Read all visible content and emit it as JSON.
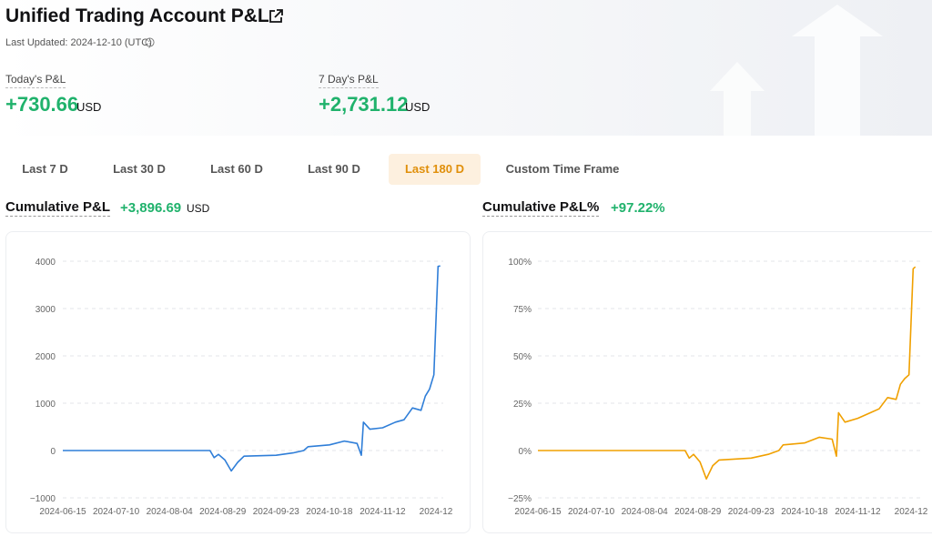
{
  "header": {
    "title": "Unified Trading Account P&L",
    "last_updated": "Last Updated: 2024-12-10 (UTC)"
  },
  "stats": {
    "today": {
      "label": "Today's P&L",
      "value": "+730.66",
      "unit": "USD"
    },
    "week": {
      "label": "7 Day's P&L",
      "value": "+2,731.12",
      "unit": "USD"
    }
  },
  "tabs": [
    {
      "label": "Last 7 D"
    },
    {
      "label": "Last 30 D"
    },
    {
      "label": "Last 60 D"
    },
    {
      "label": "Last 90 D"
    },
    {
      "label": "Last 180 D",
      "active": true
    },
    {
      "label": "Custom Time Frame"
    }
  ],
  "cumulative": {
    "title": "Cumulative P&L",
    "value": "+3,896.69",
    "unit": "USD"
  },
  "cumulative_pct": {
    "title": "Cumulative P&L%",
    "value": "+97.22%"
  },
  "colors": {
    "green": "#20b26c",
    "blue": "#2f7ed8",
    "orange": "#f0a000",
    "accent_bg": "#fdf0df"
  },
  "icons": {
    "external": "external-link-icon",
    "help": "question-circle-icon"
  },
  "chart_data": [
    {
      "type": "line",
      "title": "Cumulative P&L",
      "x_ticks": [
        "2024-06-15",
        "2024-07-10",
        "2024-08-04",
        "2024-08-29",
        "2024-09-23",
        "2024-10-18",
        "2024-11-12",
        "2024-12"
      ],
      "y_ticks": [
        "4000",
        "3000",
        "2000",
        "1000",
        "0",
        "−1000"
      ],
      "ylim": [
        -1000,
        4000
      ],
      "grid": true,
      "series": [
        {
          "points": [
            [
              "2024-06-15",
              0
            ],
            [
              "2024-07-10",
              0
            ],
            [
              "2024-08-04",
              0
            ],
            [
              "2024-08-23",
              0
            ],
            [
              "2024-08-25",
              -150
            ],
            [
              "2024-08-27",
              -80
            ],
            [
              "2024-08-30",
              -200
            ],
            [
              "2024-09-02",
              -430
            ],
            [
              "2024-09-05",
              -250
            ],
            [
              "2024-09-08",
              -120
            ],
            [
              "2024-09-23",
              -100
            ],
            [
              "2024-10-01",
              -50
            ],
            [
              "2024-10-06",
              0
            ],
            [
              "2024-10-08",
              80
            ],
            [
              "2024-10-18",
              120
            ],
            [
              "2024-10-25",
              200
            ],
            [
              "2024-10-31",
              150
            ],
            [
              "2024-11-02",
              -100
            ],
            [
              "2024-11-03",
              600
            ],
            [
              "2024-11-06",
              450
            ],
            [
              "2024-11-12",
              480
            ],
            [
              "2024-11-18",
              600
            ],
            [
              "2024-11-22",
              650
            ],
            [
              "2024-11-26",
              900
            ],
            [
              "2024-11-30",
              850
            ],
            [
              "2024-12-02",
              1150
            ],
            [
              "2024-12-04",
              1300
            ],
            [
              "2024-12-06",
              1600
            ],
            [
              "2024-12-08",
              3890
            ],
            [
              "2024-12-09",
              3900
            ]
          ]
        }
      ]
    },
    {
      "type": "line",
      "title": "Cumulative P&L%",
      "x_ticks": [
        "2024-06-15",
        "2024-07-10",
        "2024-08-04",
        "2024-08-29",
        "2024-09-23",
        "2024-10-18",
        "2024-11-12",
        "2024-12"
      ],
      "y_ticks": [
        "100%",
        "75%",
        "50%",
        "25%",
        "0%",
        "−25%"
      ],
      "ylim": [
        -25,
        100
      ],
      "grid": true,
      "series": [
        {
          "points": [
            [
              "2024-06-15",
              0
            ],
            [
              "2024-07-10",
              0
            ],
            [
              "2024-08-04",
              0
            ],
            [
              "2024-08-23",
              0
            ],
            [
              "2024-08-25",
              -4
            ],
            [
              "2024-08-27",
              -2
            ],
            [
              "2024-08-30",
              -6
            ],
            [
              "2024-09-02",
              -15
            ],
            [
              "2024-09-05",
              -8
            ],
            [
              "2024-09-08",
              -5
            ],
            [
              "2024-09-23",
              -4
            ],
            [
              "2024-10-01",
              -2
            ],
            [
              "2024-10-06",
              0
            ],
            [
              "2024-10-08",
              3
            ],
            [
              "2024-10-18",
              4
            ],
            [
              "2024-10-25",
              7
            ],
            [
              "2024-10-31",
              6
            ],
            [
              "2024-11-02",
              -3
            ],
            [
              "2024-11-03",
              20
            ],
            [
              "2024-11-06",
              15
            ],
            [
              "2024-11-12",
              17
            ],
            [
              "2024-11-18",
              20
            ],
            [
              "2024-11-22",
              22
            ],
            [
              "2024-11-26",
              28
            ],
            [
              "2024-11-30",
              27
            ],
            [
              "2024-12-02",
              35
            ],
            [
              "2024-12-04",
              38
            ],
            [
              "2024-12-06",
              40
            ],
            [
              "2024-12-08",
              96
            ],
            [
              "2024-12-09",
              97
            ]
          ]
        }
      ]
    }
  ]
}
